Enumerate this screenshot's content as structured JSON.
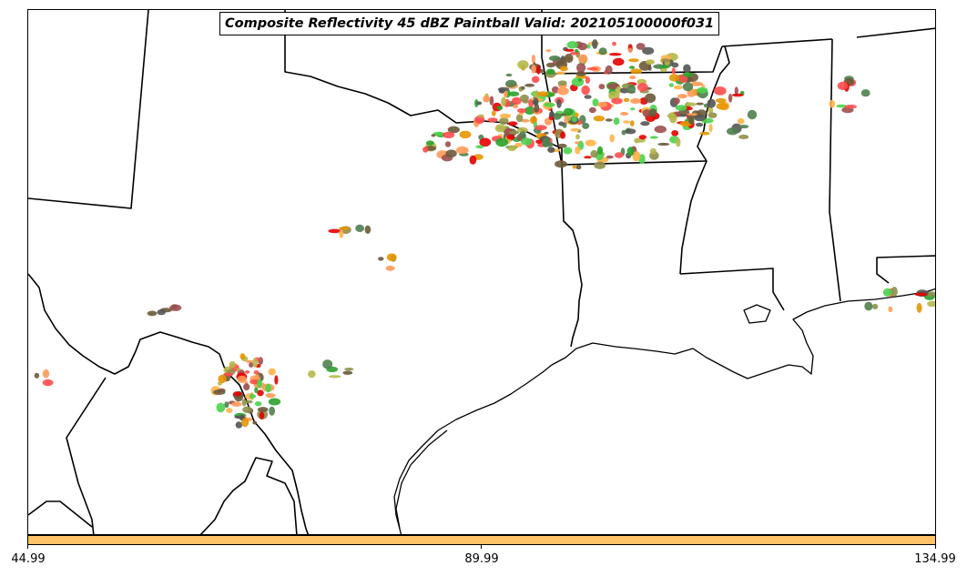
{
  "title": "Composite Reflectivity 45 dBZ Paintball Valid: 202105100000f031",
  "colorbar": {
    "color": "#ffc266",
    "ticks": [
      "44.99",
      "89.99",
      "134.99"
    ]
  },
  "member_colors": [
    "#ff4d4d",
    "#e60000",
    "#ff9955",
    "#ffb347",
    "#e69500",
    "#b5b84a",
    "#8f8f4a",
    "#4dd24d",
    "#2aa22a",
    "#4f7f4f",
    "#9c4f4f",
    "#6b5a3a",
    "#555555"
  ],
  "map_layers": [
    "state-boundaries",
    "coastline",
    "paintball-cells"
  ]
}
